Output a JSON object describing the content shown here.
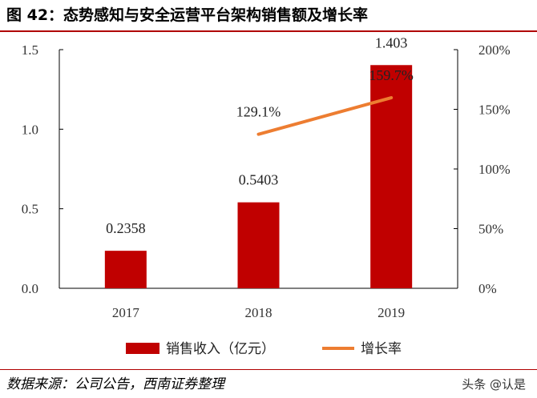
{
  "title": "图 42：态势感知与安全运营平台架构销售额及增长率",
  "source": "数据来源：公司公告，西南证券整理",
  "watermark": "头条 @认是",
  "colors": {
    "bar": "#c00000",
    "line": "#ed7d31",
    "rule": "#b00000"
  },
  "chart_data": {
    "type": "bar",
    "categories": [
      "2017",
      "2018",
      "2019"
    ],
    "series": [
      {
        "name": "销售收入（亿元）",
        "type": "bar",
        "axis": "left",
        "values": [
          0.2358,
          0.5403,
          1.403
        ],
        "labels": [
          "0.2358",
          "0.5403",
          "1.403"
        ]
      },
      {
        "name": "增长率",
        "type": "line",
        "axis": "right",
        "values": [
          null,
          129.1,
          159.7
        ],
        "labels": [
          "",
          "129.1%",
          "159.7%"
        ]
      }
    ],
    "y_left": {
      "ylim": [
        0,
        1.5
      ],
      "ticks": [
        0.0,
        0.5,
        1.0,
        1.5
      ],
      "tick_labels": [
        "0.0",
        "0.5",
        "1.0",
        "1.5"
      ]
    },
    "y_right": {
      "ylim": [
        0,
        200
      ],
      "ticks": [
        0,
        50,
        100,
        150,
        200
      ],
      "tick_labels": [
        "0%",
        "50%",
        "100%",
        "150%",
        "200%"
      ]
    },
    "legend_position": "bottom",
    "grid": false
  }
}
